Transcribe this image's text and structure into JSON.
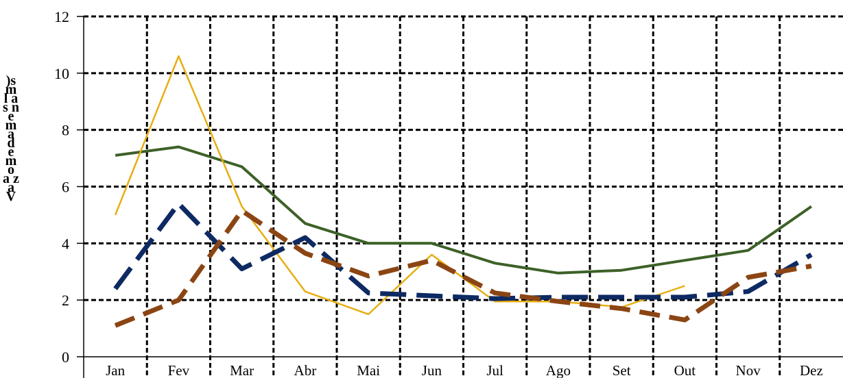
{
  "chart_data": {
    "type": "line",
    "title": "",
    "xlabel": "",
    "ylabel": ")s m l a s n e m a d e m o a z a V",
    "ylim": [
      0,
      12
    ],
    "yticks": [
      "0",
      "2",
      "4",
      "6",
      "8",
      "10",
      "12"
    ],
    "categories": [
      "Jan",
      "Fev",
      "Mar",
      "Abr",
      "Mai",
      "Jun",
      "Jul",
      "Ago",
      "Set",
      "Out",
      "Nov",
      "Dez"
    ],
    "grid": true,
    "legend": "none",
    "series": [
      {
        "color": "#3d6128",
        "style": "solid-thick",
        "values": [
          7.1,
          7.4,
          6.7,
          4.7,
          4.0,
          4.0,
          3.3,
          2.95,
          3.05,
          3.4,
          3.75,
          5.3
        ]
      },
      {
        "color": "#e6ae12",
        "style": "solid-thin",
        "values": [
          5.0,
          10.6,
          5.3,
          2.3,
          1.5,
          3.6,
          1.95,
          1.95,
          1.75,
          2.5,
          null,
          null
        ]
      },
      {
        "color": "#0e2a63",
        "style": "long-dash",
        "values": [
          2.4,
          5.4,
          3.1,
          4.2,
          2.25,
          2.15,
          2.05,
          2.1,
          2.1,
          2.1,
          2.3,
          3.6
        ]
      },
      {
        "color": "#8b4513",
        "style": "dash",
        "values": [
          1.1,
          2.0,
          5.15,
          3.65,
          2.85,
          3.4,
          2.25,
          1.95,
          1.7,
          1.3,
          2.8,
          3.2
        ]
      }
    ]
  }
}
